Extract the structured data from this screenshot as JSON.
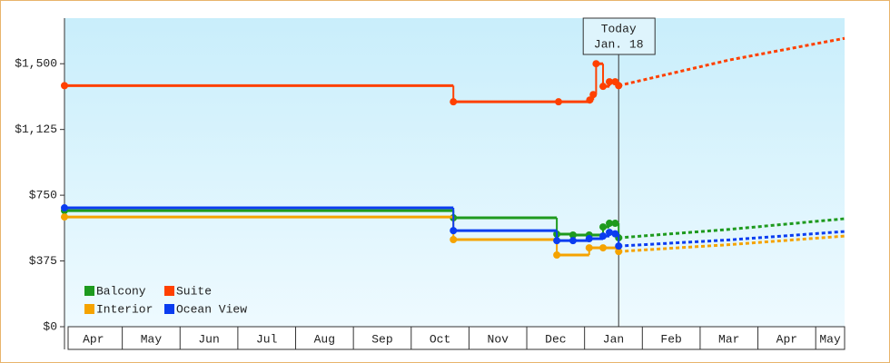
{
  "chart_data": {
    "type": "step-line",
    "xlim": [
      0,
      13.5
    ],
    "xticks": [
      0,
      1,
      2,
      3,
      4,
      5,
      6,
      7,
      8,
      9,
      10,
      11,
      12,
      13
    ],
    "x_labels": [
      {
        "value": 0.5,
        "label": "Apr"
      },
      {
        "value": 1.5,
        "label": "May"
      },
      {
        "value": 2.5,
        "label": "Jun"
      },
      {
        "value": 3.5,
        "label": "Jul"
      },
      {
        "value": 4.5,
        "label": "Aug"
      },
      {
        "value": 5.5,
        "label": "Sep"
      },
      {
        "value": 6.5,
        "label": "Oct"
      },
      {
        "value": 7.5,
        "label": "Nov"
      },
      {
        "value": 8.5,
        "label": "Dec"
      },
      {
        "value": 9.5,
        "label": "Jan"
      },
      {
        "value": 10.5,
        "label": "Feb"
      },
      {
        "value": 11.5,
        "label": "Mar"
      },
      {
        "value": 12.5,
        "label": "Apr"
      },
      {
        "value": 13.25,
        "label": "May"
      }
    ],
    "ylim": [
      0,
      1760
    ],
    "yticks": [
      {
        "value": 0,
        "label": "$0"
      },
      {
        "value": 375,
        "label": "$375"
      },
      {
        "value": 750,
        "label": "$750"
      },
      {
        "value": 1125,
        "label": "$1,125"
      },
      {
        "value": 1500,
        "label": "$1,500"
      }
    ],
    "today": {
      "x": 9.59,
      "label": [
        "Today",
        "Jan. 18"
      ]
    },
    "series": [
      {
        "name": "Balcony",
        "color": "#1e9a1e",
        "x": [
          0,
          6.73,
          8.52,
          8.8,
          9.08,
          9.32,
          9.43,
          9.53,
          9.59
        ],
        "values": [
          662,
          621,
          528,
          523,
          523,
          569,
          590,
          590,
          507
        ],
        "forecast": {
          "x": [
            9.59,
            11.5,
            13.5
          ],
          "values": [
            507,
            555,
            616
          ]
        }
      },
      {
        "name": "Suite",
        "color": "#ff4000",
        "x": [
          0,
          6.73,
          8.55,
          9.09,
          9.15,
          9.2,
          9.32,
          9.43,
          9.53,
          9.59
        ],
        "values": [
          1375,
          1283,
          1283,
          1293,
          1324,
          1500,
          1371,
          1397,
          1397,
          1375
        ],
        "forecast": {
          "x": [
            9.59,
            11.5,
            13.5
          ],
          "values": [
            1375,
            1521,
            1645
          ]
        }
      },
      {
        "name": "Interior",
        "color": "#f5a300",
        "x": [
          0,
          6.73,
          8.52,
          9.08,
          9.32,
          9.59
        ],
        "values": [
          626,
          497,
          409,
          450,
          450,
          429
        ],
        "forecast": {
          "x": [
            9.59,
            11.5,
            13.5
          ],
          "values": [
            429,
            468,
            517
          ]
        }
      },
      {
        "name": "Ocean View",
        "color": "#0a3cf0",
        "x": [
          0,
          6.73,
          8.52,
          8.8,
          9.08,
          9.32,
          9.43,
          9.53,
          9.59
        ],
        "values": [
          678,
          548,
          491,
          491,
          502,
          517,
          538,
          530,
          460
        ],
        "forecast": {
          "x": [
            9.59,
            11.5,
            13.5
          ],
          "values": [
            460,
            495,
            543
          ]
        }
      }
    ]
  }
}
